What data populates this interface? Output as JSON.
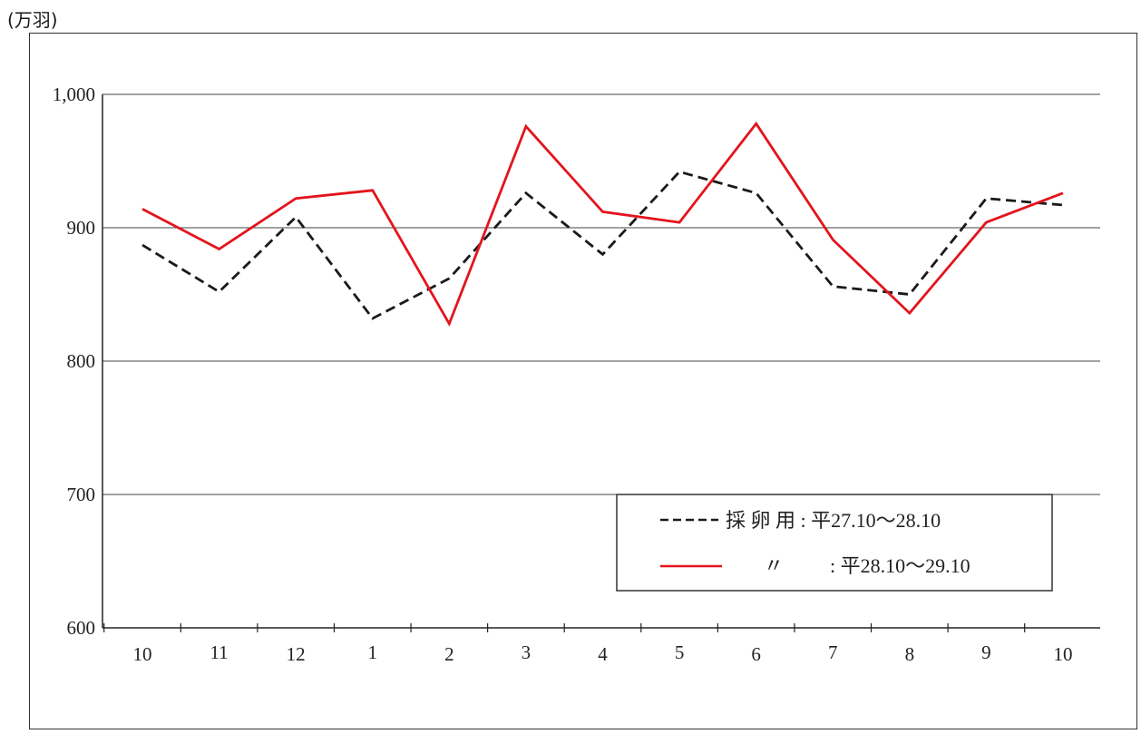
{
  "unit_label": "(万羽)",
  "chart_data": {
    "type": "line",
    "title": "",
    "xlabel": "",
    "ylabel": "(万羽)",
    "categories": [
      "10",
      "11",
      "12",
      "1",
      "2",
      "3",
      "4",
      "5",
      "6",
      "7",
      "8",
      "9",
      "10"
    ],
    "y_ticks": [
      "600",
      "700",
      "800",
      "900",
      "1,000"
    ],
    "y_tick_values": [
      600,
      700,
      800,
      900,
      1000
    ],
    "ylim": [
      600,
      1000
    ],
    "grid": true,
    "legend_position": "bottom-right",
    "series": [
      {
        "name": "採 卵 用 : 平27.10〜28.10",
        "style": "dashed",
        "color": "#1a1a1a",
        "values": [
          887,
          852,
          908,
          832,
          862,
          926,
          880,
          942,
          926,
          856,
          850,
          922,
          917
        ]
      },
      {
        "name": "〃 : 平28.10〜29.10",
        "legend_mark": "〃",
        "legend_text": ": 平28.10〜29.10",
        "style": "solid",
        "color": "#e3141c",
        "values": [
          914,
          884,
          922,
          928,
          828,
          976,
          912,
          904,
          978,
          891,
          836,
          904,
          926
        ]
      }
    ]
  }
}
